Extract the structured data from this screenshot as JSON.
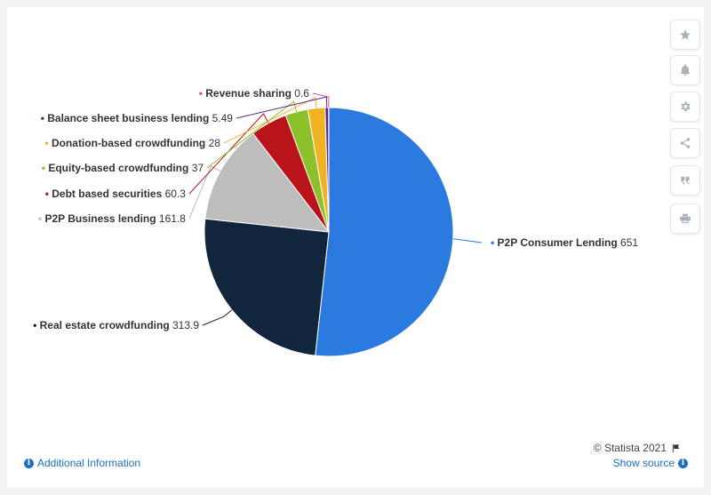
{
  "toolbar": {
    "buttons": [
      {
        "name": "favorite-button",
        "icon": "star-icon"
      },
      {
        "name": "notification-button",
        "icon": "bell-icon"
      },
      {
        "name": "settings-button",
        "icon": "gear-icon"
      },
      {
        "name": "share-button",
        "icon": "share-icon"
      },
      {
        "name": "cite-button",
        "icon": "quote-icon"
      },
      {
        "name": "print-button",
        "icon": "print-icon"
      }
    ]
  },
  "footer": {
    "additional_info": "Additional Information",
    "show_source": "Show source",
    "credit": "© Statista 2021"
  },
  "chart_data": {
    "type": "pie",
    "start_angle_deg": 0,
    "direction": "clockwise",
    "slices": [
      {
        "label": "P2P Consumer Lending",
        "value": 651,
        "display": "651",
        "color": "#2b7ae0"
      },
      {
        "label": "Real estate crowdfunding",
        "value": 313.9,
        "display": "313.9",
        "color": "#11253d"
      },
      {
        "label": "P2P Business lending",
        "value": 161.8,
        "display": "161.8",
        "color": "#bdbdbd"
      },
      {
        "label": "Debt based securities",
        "value": 60.3,
        "display": "60.3",
        "color": "#b8141a"
      },
      {
        "label": "Equity-based crowdfunding",
        "value": 37,
        "display": "37",
        "color": "#8cc12a"
      },
      {
        "label": "Donation-based crowdfunding",
        "value": 28,
        "display": "28",
        "color": "#f0b323"
      },
      {
        "label": "Balance sheet business lending",
        "value": 5.49,
        "display": "5.49",
        "color": "#5b2a86"
      },
      {
        "label": "Revenue sharing",
        "value": 0.6,
        "display": "0.6",
        "color": "#d94fa8"
      }
    ]
  }
}
